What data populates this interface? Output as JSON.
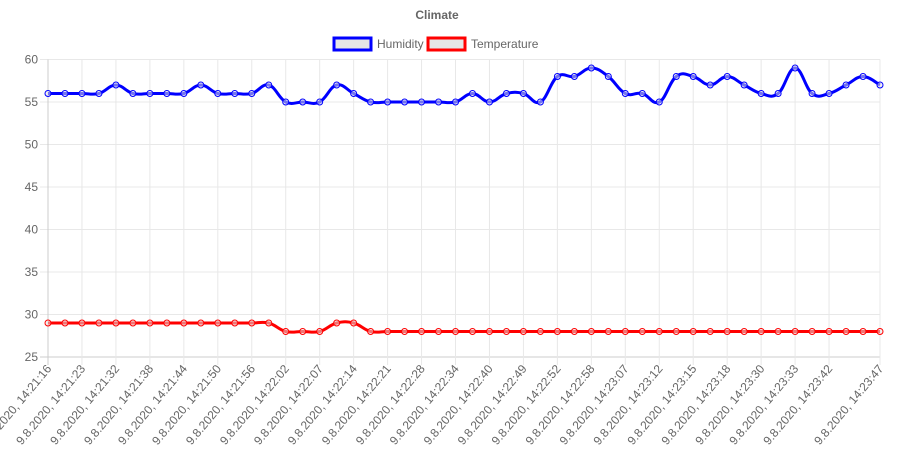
{
  "chart_data": {
    "type": "line",
    "title": "Climate",
    "legend_position": "top",
    "grid": true,
    "ylim": [
      25,
      60
    ],
    "y_ticks": [
      25,
      30,
      35,
      40,
      45,
      50,
      55,
      60
    ],
    "x": [
      "9.8.2020, 14:21:16",
      "",
      "9.8.2020, 14:21:23",
      "",
      "9.8.2020, 14:21:32",
      "",
      "9.8.2020, 14:21:38",
      "",
      "9.8.2020, 14:21:44",
      "",
      "9.8.2020, 14:21:50",
      "",
      "9.8.2020, 14:21:56",
      "",
      "9.8.2020, 14:22:02",
      "",
      "9.8.2020, 14:22:07",
      "",
      "9.8.2020, 14:22:14",
      "",
      "9.8.2020, 14:22:21",
      "",
      "9.8.2020, 14:22:28",
      "",
      "9.8.2020, 14:22:34",
      "",
      "9.8.2020, 14:22:40",
      "",
      "9.8.2020, 14:22:49",
      "",
      "9.8.2020, 14:22:52",
      "",
      "9.8.2020, 14:22:58",
      "",
      "9.8.2020, 14:23:07",
      "",
      "9.8.2020, 14:23:12",
      "",
      "9.8.2020, 14:23:15",
      "",
      "9.8.2020, 14:23:18",
      "",
      "9.8.2020, 14:23:30",
      "",
      "9.8.2020, 14:23:33",
      "",
      "9.8.2020, 14:23:42",
      "",
      "",
      "9.8.2020, 14:23:47"
    ],
    "series": [
      {
        "name": "Humidity",
        "color": "#0000ff",
        "values": [
          56,
          56,
          56,
          56,
          57,
          56,
          56,
          56,
          56,
          57,
          56,
          56,
          56,
          57,
          55,
          55,
          55,
          57,
          56,
          55,
          55,
          55,
          55,
          55,
          55,
          56,
          55,
          56,
          56,
          55,
          58,
          58,
          59,
          58,
          56,
          56,
          55,
          58,
          58,
          57,
          58,
          57,
          56,
          56,
          59,
          56,
          56,
          57,
          58,
          57
        ]
      },
      {
        "name": "Temperature",
        "color": "#ff0000",
        "values": [
          29,
          29,
          29,
          29,
          29,
          29,
          29,
          29,
          29,
          29,
          29,
          29,
          29,
          29,
          28,
          28,
          28,
          29,
          29,
          28,
          28,
          28,
          28,
          28,
          28,
          28,
          28,
          28,
          28,
          28,
          28,
          28,
          28,
          28,
          28,
          28,
          28,
          28,
          28,
          28,
          28,
          28,
          28,
          28,
          28,
          28,
          28,
          28,
          28,
          28
        ]
      }
    ]
  }
}
